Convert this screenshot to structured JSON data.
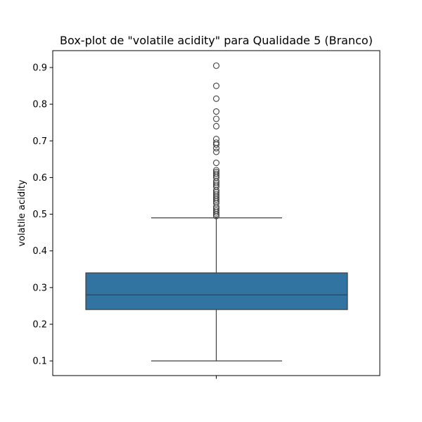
{
  "chart_data": {
    "type": "box",
    "title": "Box-plot de \"volatile acidity\" para Qualidade 5 (Branco)",
    "xlabel": "",
    "ylabel": "volatile acidity",
    "ylim": [
      0.06,
      0.946
    ],
    "yticks": [
      0.1,
      0.2,
      0.3,
      0.4,
      0.5,
      0.6,
      0.7,
      0.8,
      0.9
    ],
    "ytick_labels": [
      "0.1",
      "0.2",
      "0.3",
      "0.4",
      "0.5",
      "0.6",
      "0.7",
      "0.8",
      "0.9"
    ],
    "grid": false,
    "box": {
      "whisker_low": 0.1,
      "q1": 0.24,
      "median": 0.28,
      "q3": 0.34,
      "whisker_high": 0.49
    },
    "outliers": [
      0.495,
      0.5,
      0.505,
      0.51,
      0.515,
      0.52,
      0.53,
      0.535,
      0.54,
      0.545,
      0.55,
      0.555,
      0.56,
      0.565,
      0.575,
      0.58,
      0.585,
      0.59,
      0.6,
      0.605,
      0.61,
      0.615,
      0.62,
      0.64,
      0.67,
      0.68,
      0.69,
      0.695,
      0.705,
      0.74,
      0.76,
      0.78,
      0.815,
      0.85,
      0.905
    ],
    "colors": {
      "box_fill": "#3274a1",
      "lines": "#3f3f3f",
      "axes": "#000000"
    }
  }
}
